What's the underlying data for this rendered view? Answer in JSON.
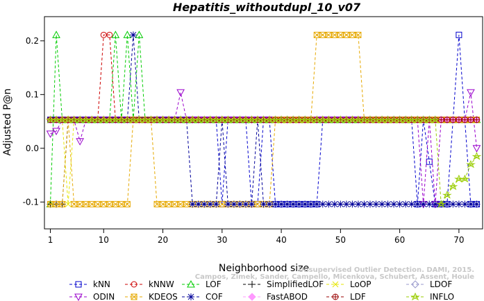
{
  "chart_data": {
    "type": "line",
    "title": "Hepatitis_withoutdupl_10_v07",
    "xlabel": "Neighborhood size",
    "ylabel": "Adjusted P@n",
    "xlim": [
      0,
      74
    ],
    "ylim": [
      -0.15,
      0.245
    ],
    "x_ticks": [
      1,
      10,
      20,
      30,
      40,
      50,
      60,
      70
    ],
    "y_ticks": [
      -0.1,
      0.0,
      0.1,
      0.2
    ],
    "y_tick_labels": [
      "-0.1",
      "0.0",
      "0.1",
      "0.2"
    ],
    "legend_placement": "bottom",
    "watermark": [
      "Unsupervised Outlier Detection. DAMI, 2015.",
      "Campos, Zimek, Sander, Campello, Micenkova, Schubert, Assent, Houle"
    ],
    "series": [
      {
        "name": "kNN",
        "color": "#0000cc",
        "marker": "square",
        "values": [
          [
            1,
            0.053
          ],
          [
            2,
            0.053
          ],
          [
            3,
            0.053
          ],
          [
            10,
            0.053
          ],
          [
            20,
            0.053
          ],
          [
            29,
            0.053
          ],
          [
            30,
            -0.104
          ],
          [
            31,
            0.053
          ],
          [
            34,
            0.053
          ],
          [
            35,
            -0.104
          ],
          [
            36,
            -0.104
          ],
          [
            37,
            0.053
          ],
          [
            38,
            0.053
          ],
          [
            39,
            -0.104
          ],
          [
            40,
            -0.104
          ],
          [
            46,
            -0.104
          ],
          [
            47,
            0.053
          ],
          [
            55,
            0.053
          ],
          [
            62,
            0.053
          ],
          [
            63,
            -0.104
          ],
          [
            64,
            0.053
          ],
          [
            65,
            -0.025
          ],
          [
            66,
            -0.104
          ],
          [
            68,
            -0.104
          ],
          [
            69,
            0.053
          ],
          [
            70,
            0.211
          ],
          [
            71,
            0.053
          ],
          [
            72,
            -0.104
          ],
          [
            73,
            -0.104
          ]
        ]
      },
      {
        "name": "kNNW",
        "color": "#cc0000",
        "marker": "circle",
        "values": [
          [
            1,
            0.053
          ],
          [
            2,
            0.053
          ],
          [
            3,
            0.053
          ],
          [
            9,
            0.053
          ],
          [
            10,
            0.211
          ],
          [
            11,
            0.211
          ],
          [
            12,
            0.053
          ],
          [
            20,
            0.053
          ],
          [
            30,
            0.053
          ],
          [
            40,
            0.053
          ],
          [
            50,
            0.053
          ],
          [
            60,
            0.053
          ],
          [
            73,
            0.053
          ]
        ]
      },
      {
        "name": "LOF",
        "color": "#00cc00",
        "marker": "triangle-up",
        "values": [
          [
            1,
            -0.104
          ],
          [
            2,
            0.211
          ],
          [
            3,
            0.053
          ],
          [
            11,
            0.053
          ],
          [
            12,
            0.211
          ],
          [
            13,
            0.053
          ],
          [
            14,
            0.211
          ],
          [
            15,
            0.053
          ],
          [
            16,
            0.211
          ],
          [
            17,
            0.053
          ],
          [
            30,
            0.053
          ],
          [
            50,
            0.053
          ],
          [
            73,
            0.053
          ]
        ]
      },
      {
        "name": "SimplifiedLOF",
        "color": "#000000",
        "marker": "plus",
        "values": [
          [
            1,
            -0.104
          ],
          [
            2,
            -0.104
          ],
          [
            3,
            -0.104
          ],
          [
            4,
            0.053
          ],
          [
            5,
            0.053
          ],
          [
            20,
            0.053
          ],
          [
            40,
            0.053
          ],
          [
            60,
            0.053
          ],
          [
            73,
            0.053
          ]
        ]
      },
      {
        "name": "LoOP",
        "color": "#e6e600",
        "marker": "x",
        "values": [
          [
            1,
            0.053
          ],
          [
            3,
            0.053
          ],
          [
            4,
            -0.104
          ],
          [
            5,
            0.053
          ],
          [
            20,
            0.053
          ],
          [
            40,
            0.053
          ],
          [
            73,
            0.053
          ]
        ]
      },
      {
        "name": "LDOF",
        "color": "#9999cc",
        "marker": "diamond",
        "values": [
          [
            1,
            0.053
          ],
          [
            20,
            0.053
          ],
          [
            40,
            0.053
          ],
          [
            73,
            0.053
          ]
        ]
      },
      {
        "name": "ODIN",
        "color": "#9900cc",
        "marker": "triangle-down",
        "values": [
          [
            1,
            0.027
          ],
          [
            2,
            0.032
          ],
          [
            3,
            0.053
          ],
          [
            5,
            0.053
          ],
          [
            6,
            0.013
          ],
          [
            7,
            0.053
          ],
          [
            22,
            0.053
          ],
          [
            23,
            0.104
          ],
          [
            24,
            0.053
          ],
          [
            63,
            0.053
          ],
          [
            64,
            -0.104
          ],
          [
            65,
            0.053
          ],
          [
            66,
            -0.104
          ],
          [
            67,
            0.053
          ],
          [
            71,
            0.053
          ],
          [
            72,
            0.104
          ],
          [
            73,
            0.0
          ]
        ]
      },
      {
        "name": "KDEOS",
        "color": "#e6a800",
        "marker": "square-x",
        "values": [
          [
            1,
            -0.104
          ],
          [
            2,
            -0.104
          ],
          [
            3,
            -0.104
          ],
          [
            4,
            0.053
          ],
          [
            5,
            -0.104
          ],
          [
            14,
            -0.104
          ],
          [
            15,
            0.053
          ],
          [
            18,
            0.053
          ],
          [
            19,
            -0.104
          ],
          [
            38,
            -0.104
          ],
          [
            39,
            0.053
          ],
          [
            45,
            0.053
          ],
          [
            46,
            0.211
          ],
          [
            53,
            0.211
          ],
          [
            54,
            0.053
          ],
          [
            73,
            0.053
          ]
        ]
      },
      {
        "name": "COF",
        "color": "#000099",
        "marker": "asterisk",
        "values": [
          [
            1,
            0.053
          ],
          [
            14,
            0.053
          ],
          [
            15,
            0.211
          ],
          [
            16,
            0.053
          ],
          [
            24,
            0.053
          ],
          [
            25,
            -0.104
          ],
          [
            29,
            -0.104
          ],
          [
            30,
            0.053
          ],
          [
            31,
            -0.104
          ],
          [
            35,
            -0.104
          ],
          [
            36,
            0.053
          ],
          [
            37,
            -0.104
          ],
          [
            38,
            -0.104
          ],
          [
            73,
            -0.104
          ]
        ]
      },
      {
        "name": "FastABOD",
        "color": "#ff99ff",
        "marker": "diamond-filled",
        "values": [
          [
            1,
            0.053
          ],
          [
            30,
            0.053
          ],
          [
            73,
            0.053
          ]
        ]
      },
      {
        "name": "LDF",
        "color": "#990000",
        "marker": "circle-plus",
        "values": [
          [
            1,
            0.053
          ],
          [
            30,
            0.053
          ],
          [
            60,
            0.053
          ],
          [
            73,
            0.053
          ]
        ]
      },
      {
        "name": "INFLO",
        "color": "#99cc00",
        "marker": "star",
        "values": [
          [
            1,
            0.053
          ],
          [
            66,
            0.053
          ],
          [
            67,
            -0.104
          ],
          [
            68,
            -0.087
          ],
          [
            69,
            -0.071
          ],
          [
            70,
            -0.057
          ],
          [
            71,
            -0.057
          ],
          [
            72,
            -0.03
          ],
          [
            73,
            -0.015
          ]
        ]
      }
    ]
  }
}
